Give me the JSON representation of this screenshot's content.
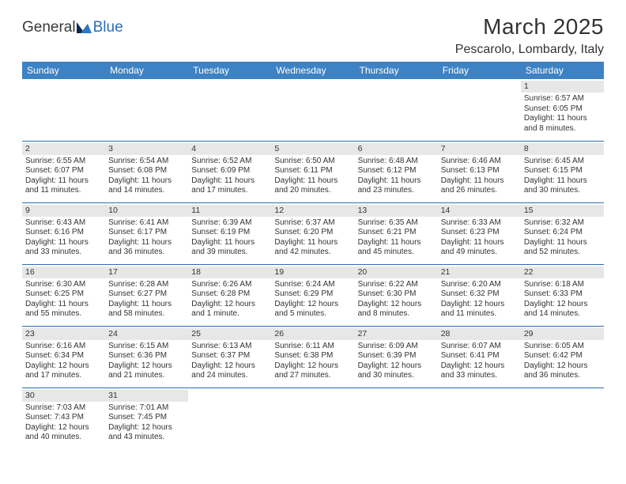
{
  "logo": {
    "word1": "General",
    "word2": "Blue"
  },
  "title": "March 2025",
  "location": "Pescarolo, Lombardy, Italy",
  "colors": {
    "header_bg": "#3d82c4",
    "header_fg": "#ffffff",
    "rule": "#2a6db8",
    "daynum_bg": "#e7e7e7",
    "text": "#333333",
    "logo_blue": "#2a6db8",
    "logo_dark": "#0a2a50"
  },
  "weekdays": [
    "Sunday",
    "Monday",
    "Tuesday",
    "Wednesday",
    "Thursday",
    "Friday",
    "Saturday"
  ],
  "weeks": [
    [
      null,
      null,
      null,
      null,
      null,
      null,
      {
        "n": "1",
        "sr": "Sunrise: 6:57 AM",
        "ss": "Sunset: 6:05 PM",
        "dl": "Daylight: 11 hours and 8 minutes."
      }
    ],
    [
      {
        "n": "2",
        "sr": "Sunrise: 6:55 AM",
        "ss": "Sunset: 6:07 PM",
        "dl": "Daylight: 11 hours and 11 minutes."
      },
      {
        "n": "3",
        "sr": "Sunrise: 6:54 AM",
        "ss": "Sunset: 6:08 PM",
        "dl": "Daylight: 11 hours and 14 minutes."
      },
      {
        "n": "4",
        "sr": "Sunrise: 6:52 AM",
        "ss": "Sunset: 6:09 PM",
        "dl": "Daylight: 11 hours and 17 minutes."
      },
      {
        "n": "5",
        "sr": "Sunrise: 6:50 AM",
        "ss": "Sunset: 6:11 PM",
        "dl": "Daylight: 11 hours and 20 minutes."
      },
      {
        "n": "6",
        "sr": "Sunrise: 6:48 AM",
        "ss": "Sunset: 6:12 PM",
        "dl": "Daylight: 11 hours and 23 minutes."
      },
      {
        "n": "7",
        "sr": "Sunrise: 6:46 AM",
        "ss": "Sunset: 6:13 PM",
        "dl": "Daylight: 11 hours and 26 minutes."
      },
      {
        "n": "8",
        "sr": "Sunrise: 6:45 AM",
        "ss": "Sunset: 6:15 PM",
        "dl": "Daylight: 11 hours and 30 minutes."
      }
    ],
    [
      {
        "n": "9",
        "sr": "Sunrise: 6:43 AM",
        "ss": "Sunset: 6:16 PM",
        "dl": "Daylight: 11 hours and 33 minutes."
      },
      {
        "n": "10",
        "sr": "Sunrise: 6:41 AM",
        "ss": "Sunset: 6:17 PM",
        "dl": "Daylight: 11 hours and 36 minutes."
      },
      {
        "n": "11",
        "sr": "Sunrise: 6:39 AM",
        "ss": "Sunset: 6:19 PM",
        "dl": "Daylight: 11 hours and 39 minutes."
      },
      {
        "n": "12",
        "sr": "Sunrise: 6:37 AM",
        "ss": "Sunset: 6:20 PM",
        "dl": "Daylight: 11 hours and 42 minutes."
      },
      {
        "n": "13",
        "sr": "Sunrise: 6:35 AM",
        "ss": "Sunset: 6:21 PM",
        "dl": "Daylight: 11 hours and 45 minutes."
      },
      {
        "n": "14",
        "sr": "Sunrise: 6:33 AM",
        "ss": "Sunset: 6:23 PM",
        "dl": "Daylight: 11 hours and 49 minutes."
      },
      {
        "n": "15",
        "sr": "Sunrise: 6:32 AM",
        "ss": "Sunset: 6:24 PM",
        "dl": "Daylight: 11 hours and 52 minutes."
      }
    ],
    [
      {
        "n": "16",
        "sr": "Sunrise: 6:30 AM",
        "ss": "Sunset: 6:25 PM",
        "dl": "Daylight: 11 hours and 55 minutes."
      },
      {
        "n": "17",
        "sr": "Sunrise: 6:28 AM",
        "ss": "Sunset: 6:27 PM",
        "dl": "Daylight: 11 hours and 58 minutes."
      },
      {
        "n": "18",
        "sr": "Sunrise: 6:26 AM",
        "ss": "Sunset: 6:28 PM",
        "dl": "Daylight: 12 hours and 1 minute."
      },
      {
        "n": "19",
        "sr": "Sunrise: 6:24 AM",
        "ss": "Sunset: 6:29 PM",
        "dl": "Daylight: 12 hours and 5 minutes."
      },
      {
        "n": "20",
        "sr": "Sunrise: 6:22 AM",
        "ss": "Sunset: 6:30 PM",
        "dl": "Daylight: 12 hours and 8 minutes."
      },
      {
        "n": "21",
        "sr": "Sunrise: 6:20 AM",
        "ss": "Sunset: 6:32 PM",
        "dl": "Daylight: 12 hours and 11 minutes."
      },
      {
        "n": "22",
        "sr": "Sunrise: 6:18 AM",
        "ss": "Sunset: 6:33 PM",
        "dl": "Daylight: 12 hours and 14 minutes."
      }
    ],
    [
      {
        "n": "23",
        "sr": "Sunrise: 6:16 AM",
        "ss": "Sunset: 6:34 PM",
        "dl": "Daylight: 12 hours and 17 minutes."
      },
      {
        "n": "24",
        "sr": "Sunrise: 6:15 AM",
        "ss": "Sunset: 6:36 PM",
        "dl": "Daylight: 12 hours and 21 minutes."
      },
      {
        "n": "25",
        "sr": "Sunrise: 6:13 AM",
        "ss": "Sunset: 6:37 PM",
        "dl": "Daylight: 12 hours and 24 minutes."
      },
      {
        "n": "26",
        "sr": "Sunrise: 6:11 AM",
        "ss": "Sunset: 6:38 PM",
        "dl": "Daylight: 12 hours and 27 minutes."
      },
      {
        "n": "27",
        "sr": "Sunrise: 6:09 AM",
        "ss": "Sunset: 6:39 PM",
        "dl": "Daylight: 12 hours and 30 minutes."
      },
      {
        "n": "28",
        "sr": "Sunrise: 6:07 AM",
        "ss": "Sunset: 6:41 PM",
        "dl": "Daylight: 12 hours and 33 minutes."
      },
      {
        "n": "29",
        "sr": "Sunrise: 6:05 AM",
        "ss": "Sunset: 6:42 PM",
        "dl": "Daylight: 12 hours and 36 minutes."
      }
    ],
    [
      {
        "n": "30",
        "sr": "Sunrise: 7:03 AM",
        "ss": "Sunset: 7:43 PM",
        "dl": "Daylight: 12 hours and 40 minutes."
      },
      {
        "n": "31",
        "sr": "Sunrise: 7:01 AM",
        "ss": "Sunset: 7:45 PM",
        "dl": "Daylight: 12 hours and 43 minutes."
      },
      null,
      null,
      null,
      null,
      null
    ]
  ]
}
